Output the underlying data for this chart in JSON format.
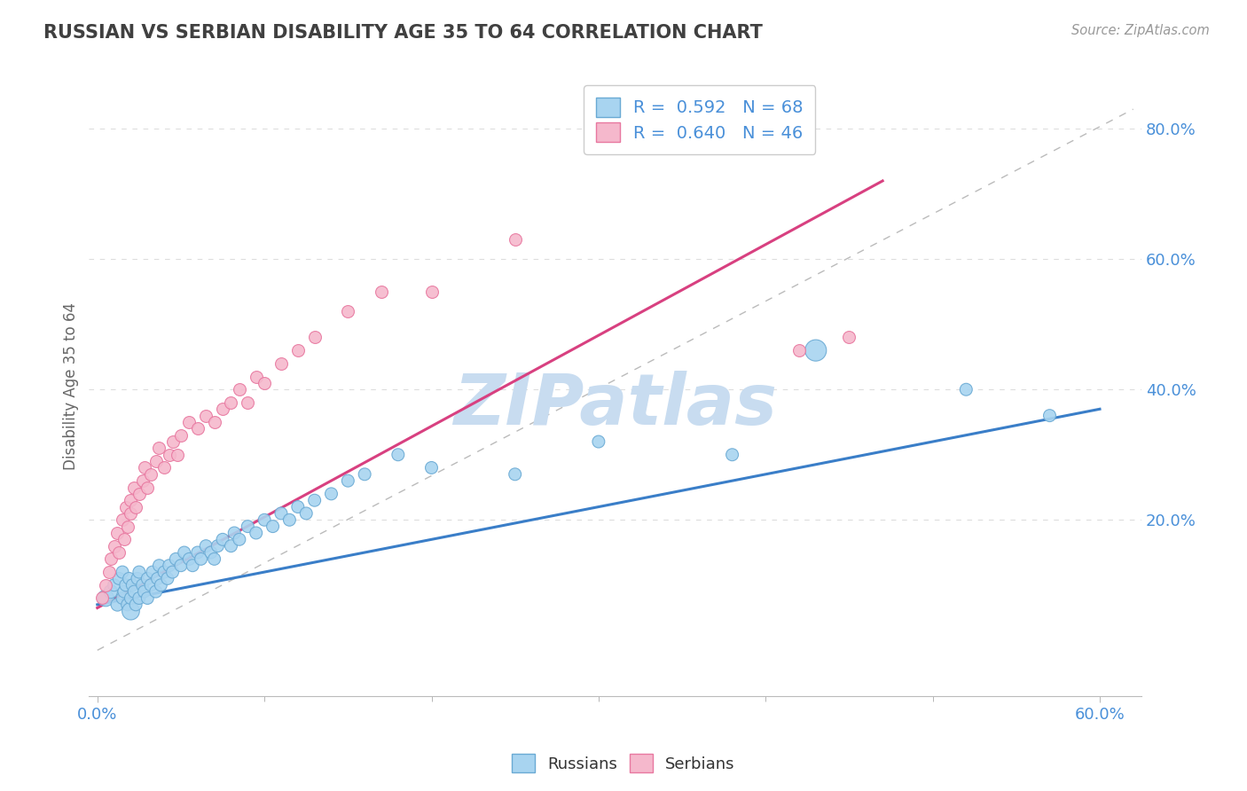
{
  "title": "RUSSIAN VS SERBIAN DISABILITY AGE 35 TO 64 CORRELATION CHART",
  "source": "Source: ZipAtlas.com",
  "ylabel": "Disability Age 35 to 64",
  "y_ticks_labels": [
    "20.0%",
    "40.0%",
    "60.0%",
    "80.0%"
  ],
  "y_tick_vals": [
    0.2,
    0.4,
    0.6,
    0.8
  ],
  "x_lim": [
    -0.005,
    0.625
  ],
  "y_lim": [
    -0.07,
    0.88
  ],
  "legend_r1": "R =  0.592   N = 68",
  "legend_r2": "R =  0.640   N = 46",
  "russian_fill": "#A8D4F0",
  "serbian_fill": "#F5B8CC",
  "russian_edge": "#6AAAD4",
  "serbian_edge": "#E878A0",
  "russian_line_color": "#3A7EC8",
  "serbian_line_color": "#D84080",
  "title_color": "#404040",
  "axis_tick_color": "#4A90D9",
  "watermark_color": "#C8DCF0",
  "background_color": "#FFFFFF",
  "grid_color": "#DDDDDD",
  "russian_scatter_x": [
    0.005,
    0.008,
    0.01,
    0.012,
    0.013,
    0.015,
    0.015,
    0.016,
    0.017,
    0.018,
    0.019,
    0.02,
    0.02,
    0.021,
    0.022,
    0.023,
    0.024,
    0.025,
    0.025,
    0.027,
    0.028,
    0.03,
    0.03,
    0.032,
    0.033,
    0.035,
    0.036,
    0.037,
    0.038,
    0.04,
    0.042,
    0.043,
    0.045,
    0.047,
    0.05,
    0.052,
    0.055,
    0.057,
    0.06,
    0.062,
    0.065,
    0.068,
    0.07,
    0.072,
    0.075,
    0.08,
    0.082,
    0.085,
    0.09,
    0.095,
    0.1,
    0.105,
    0.11,
    0.115,
    0.12,
    0.125,
    0.13,
    0.14,
    0.15,
    0.16,
    0.18,
    0.2,
    0.25,
    0.3,
    0.38,
    0.43,
    0.52,
    0.57
  ],
  "russian_scatter_y": [
    0.08,
    0.09,
    0.1,
    0.07,
    0.11,
    0.08,
    0.12,
    0.09,
    0.1,
    0.07,
    0.11,
    0.06,
    0.08,
    0.1,
    0.09,
    0.07,
    0.11,
    0.08,
    0.12,
    0.1,
    0.09,
    0.08,
    0.11,
    0.1,
    0.12,
    0.09,
    0.11,
    0.13,
    0.1,
    0.12,
    0.11,
    0.13,
    0.12,
    0.14,
    0.13,
    0.15,
    0.14,
    0.13,
    0.15,
    0.14,
    0.16,
    0.15,
    0.14,
    0.16,
    0.17,
    0.16,
    0.18,
    0.17,
    0.19,
    0.18,
    0.2,
    0.19,
    0.21,
    0.2,
    0.22,
    0.21,
    0.23,
    0.24,
    0.26,
    0.27,
    0.3,
    0.28,
    0.27,
    0.32,
    0.3,
    0.46,
    0.4,
    0.36
  ],
  "russian_scatter_sizes": [
    180,
    120,
    100,
    110,
    100,
    100,
    100,
    100,
    100,
    100,
    100,
    200,
    100,
    100,
    100,
    100,
    100,
    100,
    100,
    100,
    100,
    100,
    100,
    100,
    100,
    100,
    100,
    100,
    100,
    100,
    100,
    100,
    100,
    100,
    100,
    100,
    100,
    100,
    100,
    100,
    100,
    100,
    100,
    100,
    100,
    100,
    100,
    100,
    100,
    100,
    100,
    100,
    100,
    100,
    100,
    100,
    100,
    100,
    100,
    100,
    100,
    100,
    100,
    100,
    100,
    300,
    100,
    100
  ],
  "serbian_scatter_x": [
    0.003,
    0.005,
    0.007,
    0.008,
    0.01,
    0.012,
    0.013,
    0.015,
    0.016,
    0.017,
    0.018,
    0.02,
    0.02,
    0.022,
    0.023,
    0.025,
    0.027,
    0.028,
    0.03,
    0.032,
    0.035,
    0.037,
    0.04,
    0.043,
    0.045,
    0.048,
    0.05,
    0.055,
    0.06,
    0.065,
    0.07,
    0.075,
    0.08,
    0.085,
    0.09,
    0.095,
    0.1,
    0.11,
    0.12,
    0.13,
    0.15,
    0.17,
    0.2,
    0.25,
    0.42,
    0.45
  ],
  "serbian_scatter_y": [
    0.08,
    0.1,
    0.12,
    0.14,
    0.16,
    0.18,
    0.15,
    0.2,
    0.17,
    0.22,
    0.19,
    0.21,
    0.23,
    0.25,
    0.22,
    0.24,
    0.26,
    0.28,
    0.25,
    0.27,
    0.29,
    0.31,
    0.28,
    0.3,
    0.32,
    0.3,
    0.33,
    0.35,
    0.34,
    0.36,
    0.35,
    0.37,
    0.38,
    0.4,
    0.38,
    0.42,
    0.41,
    0.44,
    0.46,
    0.48,
    0.52,
    0.55,
    0.55,
    0.63,
    0.46,
    0.48
  ],
  "russian_line_x": [
    0.0,
    0.6
  ],
  "russian_line_y": [
    0.07,
    0.37
  ],
  "serbian_line_x": [
    0.0,
    0.47
  ],
  "serbian_line_y": [
    0.065,
    0.72
  ],
  "dash_line_x": [
    0.0,
    0.62
  ],
  "dash_line_y": [
    0.0,
    0.83
  ]
}
